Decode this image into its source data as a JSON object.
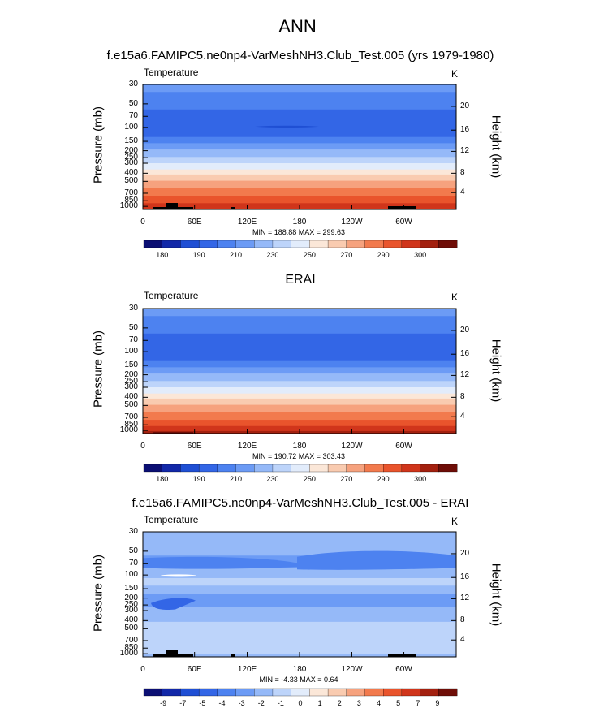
{
  "chart_data": [
    {
      "type": "heatmap",
      "title": "f.e15a6.FAMIPC5.ne0np4-VarMeshNH3.Club_Test.005 (yrs 1979-1980)",
      "variable": "Temperature",
      "units": "K",
      "ylabel": "Pressure (mb)",
      "ylabel_right": "Height (km)",
      "pressure_ticks": [
        "30",
        "50",
        "70",
        "100",
        "150",
        "200",
        "250",
        "300",
        "400",
        "500",
        "700",
        "850",
        "1000"
      ],
      "height_ticks": [
        "20",
        "16",
        "12",
        "8",
        "4"
      ],
      "x_ticks": [
        "0",
        "60E",
        "120E",
        "180",
        "120W",
        "60W"
      ],
      "minmax_text": "MIN = 188.88  MAX = 299.63",
      "colorbar_labels": [
        "180",
        "190",
        "210",
        "230",
        "250",
        "270",
        "290",
        "300"
      ]
    },
    {
      "type": "heatmap",
      "title": "ERAI",
      "variable": "Temperature",
      "units": "K",
      "ylabel": "Pressure (mb)",
      "ylabel_right": "Height (km)",
      "pressure_ticks": [
        "30",
        "50",
        "70",
        "100",
        "150",
        "200",
        "250",
        "300",
        "400",
        "500",
        "700",
        "850",
        "1000"
      ],
      "height_ticks": [
        "20",
        "16",
        "12",
        "8",
        "4"
      ],
      "x_ticks": [
        "0",
        "60E",
        "120E",
        "180",
        "120W",
        "60W"
      ],
      "minmax_text": "MIN = 190.72  MAX = 303.43",
      "colorbar_labels": [
        "180",
        "190",
        "210",
        "230",
        "250",
        "270",
        "290",
        "300"
      ]
    },
    {
      "type": "heatmap",
      "title": "f.e15a6.FAMIPC5.ne0np4-VarMeshNH3.Club_Test.005 - ERAI",
      "variable": "Temperature",
      "units": "K",
      "ylabel": "Pressure (mb)",
      "ylabel_right": "Height (km)",
      "pressure_ticks": [
        "30",
        "50",
        "70",
        "100",
        "150",
        "200",
        "250",
        "300",
        "400",
        "500",
        "700",
        "850",
        "1000"
      ],
      "height_ticks": [
        "20",
        "16",
        "12",
        "8",
        "4"
      ],
      "x_ticks": [
        "0",
        "60E",
        "120E",
        "180",
        "120W",
        "60W"
      ],
      "minmax_text": "MIN = -4.33  MAX =  0.64",
      "colorbar_labels": [
        "-9",
        "-7",
        "-5",
        "-4",
        "-3",
        "-2",
        "-1",
        "0",
        "1",
        "2",
        "3",
        "4",
        "5",
        "7",
        "9"
      ]
    }
  ],
  "main_title": "ANN",
  "palette": [
    "#0b0f73",
    "#1228a8",
    "#1f4fd4",
    "#3366e6",
    "#4d82f0",
    "#6c9bf5",
    "#95b9f8",
    "#bdd4fa",
    "#e2ecfb",
    "#fbe7d8",
    "#f9cbb0",
    "#f6a27e",
    "#f27a4d",
    "#e9542c",
    "#d0351b",
    "#a3200f",
    "#6e0d07"
  ]
}
